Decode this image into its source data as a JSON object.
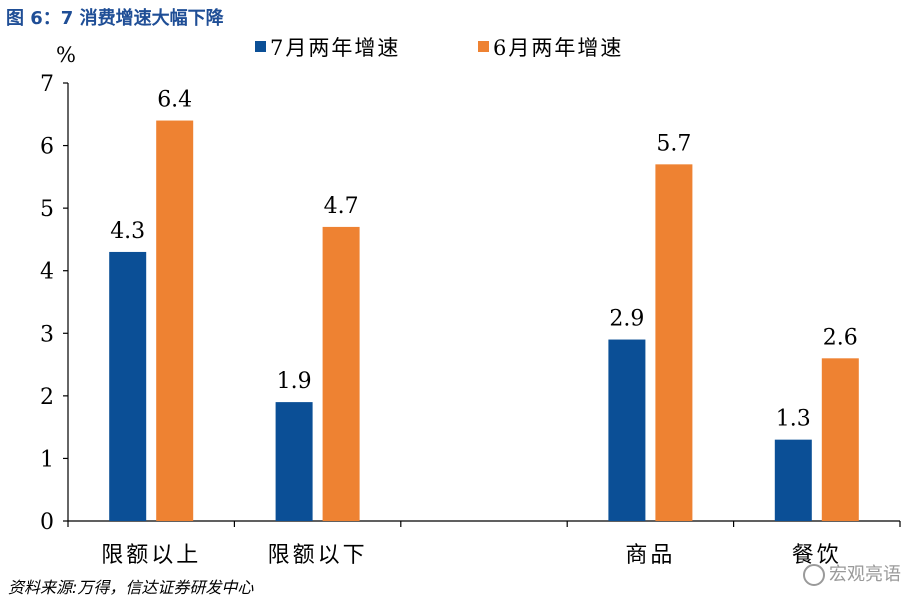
{
  "figure": {
    "title": "图 6：7 消费增速大幅下降",
    "source": "资料来源:万得，信达证券研发中心",
    "watermark": "宏观亮语"
  },
  "colors": {
    "series_1": "#0b4f96",
    "series_2": "#ee8232",
    "axis": "#000000"
  },
  "chart_data": {
    "type": "bar",
    "ylabel": "%",
    "ylim": [
      0,
      7
    ],
    "yticks": [
      0,
      1,
      2,
      3,
      4,
      5,
      6,
      7
    ],
    "categories": [
      "限额以上",
      "限额以下",
      "",
      "商品",
      "餐饮"
    ],
    "series": [
      {
        "name": "7月两年增速",
        "values": [
          4.3,
          1.9,
          null,
          2.9,
          1.3
        ]
      },
      {
        "name": "6月两年增速",
        "values": [
          6.4,
          4.7,
          null,
          5.7,
          2.6
        ]
      }
    ],
    "data_labels": [
      [
        "4.3",
        "1.9",
        null,
        "2.9",
        "1.3"
      ],
      [
        "6.4",
        "4.7",
        null,
        "5.7",
        "2.6"
      ]
    ],
    "legend_position": "top",
    "grid": false
  }
}
